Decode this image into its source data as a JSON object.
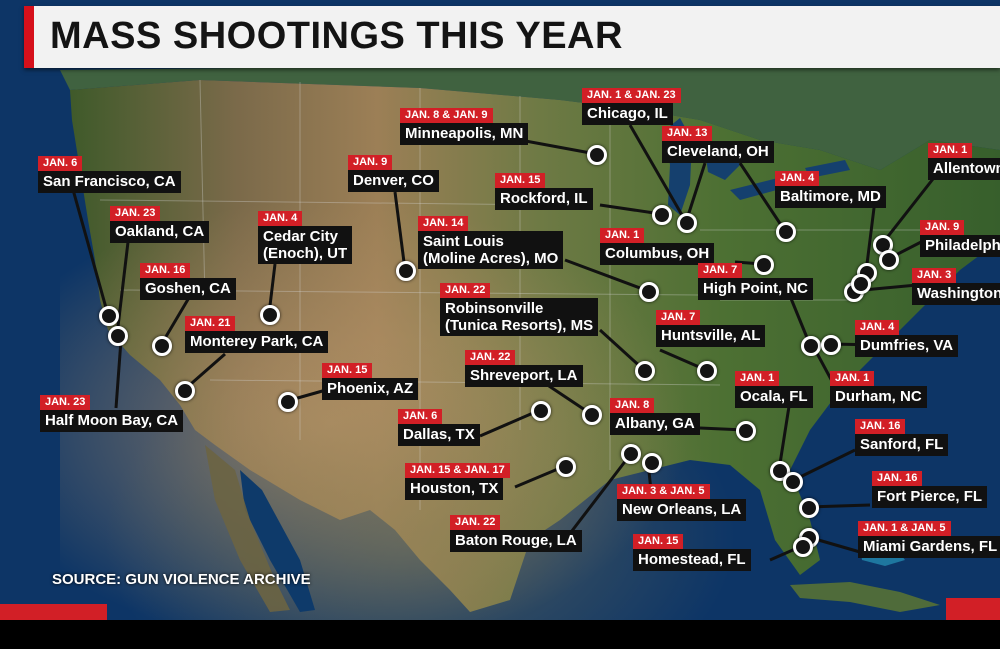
{
  "title": "MASS SHOOTINGS THIS YEAR",
  "source": "SOURCE: GUN VIOLENCE ARCHIVE",
  "colors": {
    "accent_red": "#d21f26",
    "label_black": "#111111",
    "title_bg": "#f2f2f2",
    "ocean": "#0d3566"
  },
  "marker_icon": "black-dot-with-white-ring",
  "labels": [
    {
      "id": "sf",
      "date": "JAN. 6",
      "city": "San Francisco, CA"
    },
    {
      "id": "oakland",
      "date": "JAN. 23",
      "city": "Oakland, CA"
    },
    {
      "id": "goshen",
      "date": "JAN. 16",
      "city": "Goshen, CA"
    },
    {
      "id": "monterey",
      "date": "JAN. 21",
      "city": "Monterey Park, CA"
    },
    {
      "id": "halfmoon",
      "date": "JAN. 23",
      "city": "Half Moon Bay, CA"
    },
    {
      "id": "cedar",
      "date": "JAN. 4",
      "city": "Cedar City\n(Enoch), UT"
    },
    {
      "id": "phoenix",
      "date": "JAN. 15",
      "city": "Phoenix, AZ"
    },
    {
      "id": "denver",
      "date": "JAN. 9",
      "city": "Denver, CO"
    },
    {
      "id": "minneapolis",
      "date": "JAN. 8 & JAN. 9",
      "city": "Minneapolis, MN"
    },
    {
      "id": "stlouis",
      "date": "JAN. 14",
      "city": "Saint Louis\n(Moline Acres), MO"
    },
    {
      "id": "rockford",
      "date": "JAN. 15",
      "city": "Rockford, IL"
    },
    {
      "id": "chicago",
      "date": "JAN. 1 & JAN. 23",
      "city": "Chicago, IL"
    },
    {
      "id": "robinsonville",
      "date": "JAN. 22",
      "city": "Robinsonville\n(Tunica Resorts), MS"
    },
    {
      "id": "shreveport",
      "date": "JAN. 22",
      "city": "Shreveport, LA"
    },
    {
      "id": "dallas",
      "date": "JAN. 6",
      "city": "Dallas, TX"
    },
    {
      "id": "houston",
      "date": "JAN. 15 & JAN. 17",
      "city": "Houston, TX"
    },
    {
      "id": "batonrouge",
      "date": "JAN. 22",
      "city": "Baton Rouge, LA"
    },
    {
      "id": "neworleans",
      "date": "JAN. 3 & JAN. 5",
      "city": "New Orleans, LA"
    },
    {
      "id": "albany",
      "date": "JAN. 8",
      "city": "Albany, GA"
    },
    {
      "id": "homestead",
      "date": "JAN. 15",
      "city": "Homestead, FL"
    },
    {
      "id": "columbus",
      "date": "JAN. 1",
      "city": "Columbus, OH"
    },
    {
      "id": "cleveland",
      "date": "JAN. 13",
      "city": "Cleveland, OH"
    },
    {
      "id": "highpoint",
      "date": "JAN. 7",
      "city": "High Point, NC"
    },
    {
      "id": "huntsville",
      "date": "JAN. 7",
      "city": "Huntsville, AL"
    },
    {
      "id": "ocala",
      "date": "JAN. 1",
      "city": "Ocala, FL"
    },
    {
      "id": "baltimore",
      "date": "JAN. 4",
      "city": "Baltimore, MD"
    },
    {
      "id": "allentown",
      "date": "JAN. 1",
      "city": "Allentown"
    },
    {
      "id": "philadelphia",
      "date": "JAN. 9",
      "city": "Philadelphia"
    },
    {
      "id": "washington",
      "date": "JAN. 3",
      "city": "Washington"
    },
    {
      "id": "dumfries",
      "date": "JAN. 4",
      "city": "Dumfries, VA"
    },
    {
      "id": "durham",
      "date": "JAN. 1",
      "city": "Durham, NC"
    },
    {
      "id": "sanford",
      "date": "JAN. 16",
      "city": "Sanford, FL"
    },
    {
      "id": "fortpierce",
      "date": "JAN. 16",
      "city": "Fort Pierce, FL"
    },
    {
      "id": "miami",
      "date": "JAN. 1 & JAN. 5",
      "city": "Miami Gardens, FL"
    }
  ]
}
